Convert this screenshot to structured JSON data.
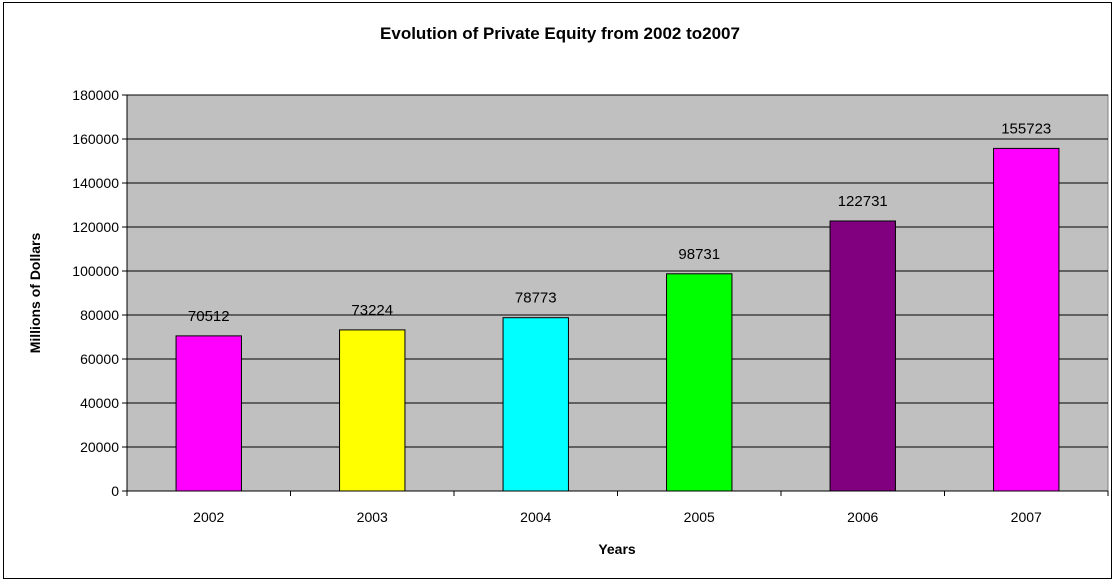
{
  "chart_data": {
    "type": "bar",
    "title": "Evolution of Private Equity from 2002 to2007",
    "xlabel": "Years",
    "ylabel": "Millions of Dollars",
    "categories": [
      "2002",
      "2003",
      "2004",
      "2005",
      "2006",
      "2007"
    ],
    "values": [
      70512,
      73224,
      78773,
      98731,
      122731,
      155723
    ],
    "data_labels": [
      "70512",
      "73224",
      "78773",
      "98731",
      "122731",
      "155723"
    ],
    "bar_colors": [
      "#ff00ff",
      "#ffff00",
      "#00ffff",
      "#00ff00",
      "#800080",
      "#ff00ff"
    ],
    "ylim": [
      0,
      180000
    ],
    "yticks": [
      0,
      20000,
      40000,
      60000,
      80000,
      100000,
      120000,
      140000,
      160000,
      180000
    ],
    "ytick_labels": [
      "0",
      "20000",
      "40000",
      "60000",
      "80000",
      "100000",
      "120000",
      "140000",
      "160000",
      "180000"
    ],
    "plot_background": "#c0c0c0",
    "grid": true,
    "legend": "none"
  }
}
